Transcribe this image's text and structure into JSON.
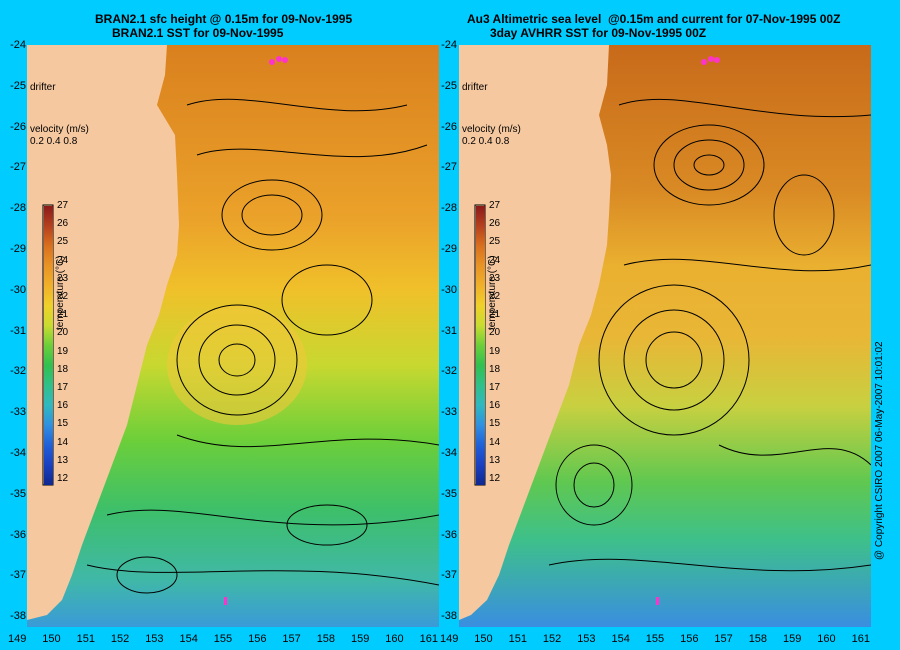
{
  "panels": [
    {
      "title_line1": "BRAN2.1 sfc height @ 0.15m for 09-Nov-1995",
      "title_line2": "BRAN2.1 SST for 09-Nov-1995",
      "drifter_label": "drifter",
      "velocity_label": "velocity (m/s)",
      "velocity_scale": "0.2 0.4 0.8"
    },
    {
      "title_line1": "Au3 Altimetric sea level  @0.15m and current for 07-Nov-1995 00Z",
      "title_line2": "3day AVHRR SST for 09-Nov-1995 00Z",
      "drifter_label": "drifter",
      "velocity_label": "velocity (m/s)",
      "velocity_scale": "0.2 0.4 0.8"
    }
  ],
  "colorbar": {
    "label": "temperature (°C)",
    "ticks": [
      "27",
      "26",
      "25",
      "24",
      "23",
      "22",
      "21",
      "20",
      "19",
      "18",
      "17",
      "16",
      "15",
      "14",
      "13",
      "12"
    ]
  },
  "axes": {
    "lat_ticks": [
      "-24",
      "-25",
      "-26",
      "-27",
      "-28",
      "-29",
      "-30",
      "-31",
      "-32",
      "-33",
      "-34",
      "-35",
      "-36",
      "-37",
      "-38"
    ],
    "lon_ticks_left": [
      "149",
      "150",
      "151",
      "152",
      "153",
      "154",
      "155",
      "156",
      "157",
      "158",
      "159",
      "160",
      "161"
    ],
    "lon_ticks_right": [
      "149",
      "150",
      "151",
      "152",
      "153",
      "154",
      "155",
      "156",
      "157",
      "158",
      "159",
      "160",
      "161"
    ]
  },
  "copyright": "@ Copyright CSIRO 2007  06-May-2007 10:01:02",
  "colors": {
    "background": "#00ccff",
    "land": "#f5c8a0",
    "drifter": "#ff33cc"
  }
}
